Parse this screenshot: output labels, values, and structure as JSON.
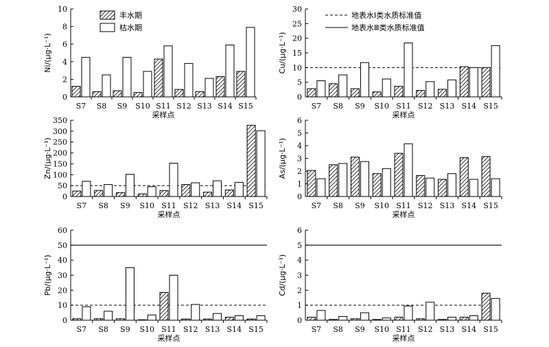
{
  "chart_data": [
    {
      "type": "bar",
      "panel": "Ni",
      "ylabel": "Ni/(μg·L⁻¹)",
      "xlabel": "采样点",
      "categories": [
        "S7",
        "S8",
        "S9",
        "S10",
        "S11",
        "S12",
        "S13",
        "S14",
        "S15"
      ],
      "series": [
        {
          "name": "丰水期",
          "values": [
            1.2,
            0.6,
            0.7,
            0.5,
            4.3,
            0.85,
            0.6,
            2.3,
            2.9
          ]
        },
        {
          "name": "枯水期",
          "values": [
            4.5,
            2.5,
            4.5,
            2.9,
            5.8,
            3.8,
            2.1,
            5.9,
            7.9
          ]
        }
      ],
      "ylim": [
        0,
        10
      ],
      "yticks": [
        "0",
        "2",
        "4",
        "6",
        "8",
        "10"
      ],
      "reference_lines": [],
      "legend": [
        "丰水期",
        "枯水期"
      ]
    },
    {
      "type": "bar",
      "panel": "Cu",
      "ylabel": "Cu/(μg·L⁻¹)",
      "xlabel": "采样点",
      "categories": [
        "S7",
        "S8",
        "S9",
        "S10",
        "S11",
        "S12",
        "S13",
        "S14",
        "S15"
      ],
      "series": [
        {
          "name": "丰水期",
          "values": [
            2.8,
            4.5,
            2.8,
            1.7,
            3.6,
            2.2,
            2.6,
            10.3,
            10
          ]
        },
        {
          "name": "枯水期",
          "values": [
            5.5,
            7.5,
            11.7,
            6.1,
            18.4,
            5.2,
            5.8,
            10,
            17.5
          ]
        }
      ],
      "ylim": [
        0,
        30
      ],
      "yticks": [
        "0",
        "5",
        "10",
        "15",
        "20",
        "25",
        "30"
      ],
      "reference_lines": [
        {
          "style": "dashed",
          "value": 10
        }
      ],
      "legend": [
        "地表水Ⅰ类水质标准值",
        "地表水Ⅲ类水质标准值"
      ]
    },
    {
      "type": "bar",
      "panel": "Zn",
      "ylabel": "Zn/(μg·L⁻¹)",
      "xlabel": "采样点",
      "categories": [
        "S7",
        "S8",
        "S9",
        "S10",
        "S11",
        "S12",
        "S13",
        "S14",
        "S15"
      ],
      "series": [
        {
          "name": "丰水期",
          "values": [
            25,
            28,
            18,
            12,
            27,
            55,
            20,
            30,
            327
          ]
        },
        {
          "name": "枯水期",
          "values": [
            70,
            55,
            102,
            45,
            153,
            63,
            72,
            65,
            302
          ]
        }
      ],
      "ylim": [
        0,
        350
      ],
      "yticks": [
        "0",
        "50",
        "100",
        "150",
        "200",
        "250",
        "300",
        "350"
      ],
      "reference_lines": [
        {
          "style": "dashed",
          "value": 50
        }
      ]
    },
    {
      "type": "bar",
      "panel": "As",
      "ylabel": "As/(μg·L⁻¹)",
      "xlabel": "采样点",
      "categories": [
        "S7",
        "S8",
        "S9",
        "S10",
        "S11",
        "S12",
        "S13",
        "S14",
        "S15"
      ],
      "series": [
        {
          "name": "丰水期",
          "values": [
            2.05,
            2.5,
            3.1,
            1.8,
            3.4,
            1.65,
            1.35,
            3.05,
            3.15
          ]
        },
        {
          "name": "枯水期",
          "values": [
            1.4,
            2.6,
            2.75,
            2.2,
            4.15,
            1.45,
            1.8,
            1.35,
            1.4
          ]
        }
      ],
      "ylim": [
        0,
        6
      ],
      "yticks": [
        "0",
        "1",
        "2",
        "3",
        "4",
        "5",
        "6"
      ],
      "reference_lines": []
    },
    {
      "type": "bar",
      "panel": "Pb",
      "ylabel": "Pb/(μg·L⁻¹)",
      "xlabel": "采样点",
      "categories": [
        "S7",
        "S8",
        "S9",
        "S10",
        "S11",
        "S12",
        "S13",
        "S14",
        "S15"
      ],
      "series": [
        {
          "name": "丰水期",
          "values": [
            1,
            1,
            1,
            0.3,
            18.5,
            0.8,
            0.8,
            2,
            0.8
          ]
        },
        {
          "name": "枯水期",
          "values": [
            9,
            6,
            35,
            3.5,
            30,
            10.5,
            4.5,
            3,
            3
          ]
        }
      ],
      "ylim": [
        0,
        60
      ],
      "yticks": [
        "0",
        "10",
        "20",
        "30",
        "40",
        "50",
        "60"
      ],
      "reference_lines": [
        {
          "style": "dashed",
          "value": 10
        },
        {
          "style": "solid",
          "value": 50
        }
      ]
    },
    {
      "type": "bar",
      "panel": "Cd",
      "ylabel": "Cd/(μg·L⁻¹)",
      "xlabel": "采样点",
      "categories": [
        "S7",
        "S8",
        "S9",
        "S10",
        "S11",
        "S12",
        "S13",
        "S14",
        "S15"
      ],
      "series": [
        {
          "name": "丰水期",
          "values": [
            0.2,
            0.05,
            0.1,
            0.05,
            0.2,
            0.1,
            0.05,
            0.2,
            1.8
          ]
        },
        {
          "name": "枯水期",
          "values": [
            0.65,
            0.25,
            0.5,
            0.15,
            0.95,
            1.2,
            0.2,
            0.3,
            1.45
          ]
        }
      ],
      "ylim": [
        0,
        6
      ],
      "yticks": [
        "0",
        "1",
        "2",
        "3",
        "4",
        "5",
        "6"
      ],
      "reference_lines": [
        {
          "style": "dashed",
          "value": 1
        },
        {
          "style": "solid",
          "value": 5
        }
      ]
    }
  ]
}
